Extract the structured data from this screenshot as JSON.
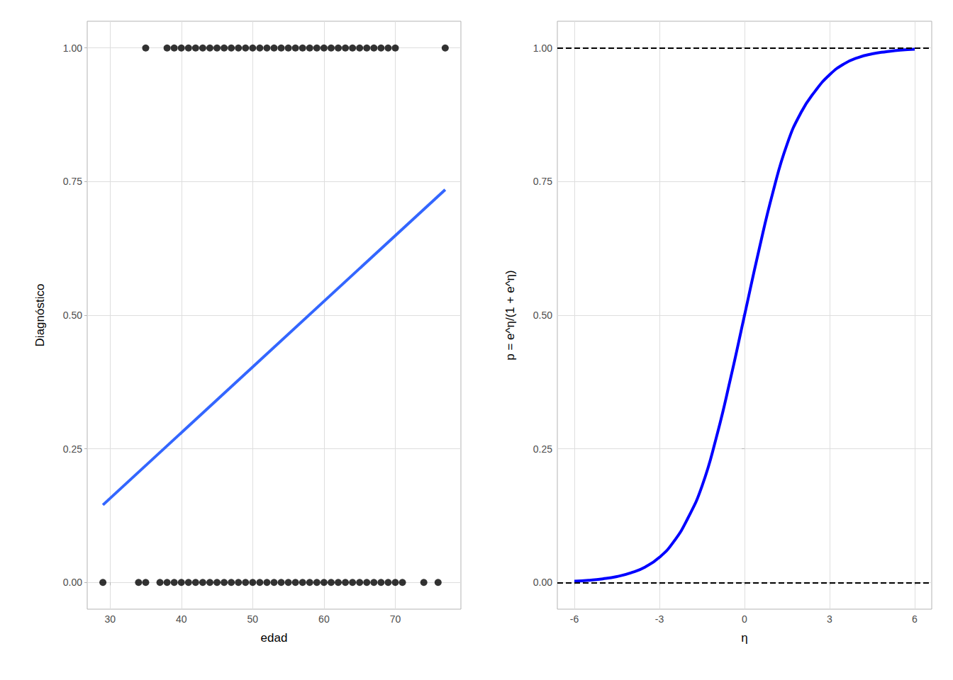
{
  "chart_data": [
    {
      "type": "scatter",
      "xlabel": "edad",
      "ylabel": "Diagnóstico",
      "xlim": [
        26.8,
        79.2
      ],
      "ylim": [
        -0.05,
        1.05
      ],
      "xticks": [
        30,
        40,
        50,
        60,
        70
      ],
      "yticks": [
        {
          "value": 0,
          "label": "0.00"
        },
        {
          "value": 0.25,
          "label": "0.25"
        },
        {
          "value": 0.5,
          "label": "0.50"
        },
        {
          "value": 0.75,
          "label": "0.75"
        },
        {
          "value": 1,
          "label": "1.00"
        }
      ],
      "grid": true,
      "series": [
        {
          "type": "scatter",
          "color": "#000000",
          "marker": "circle",
          "x": [
            35,
            38,
            39,
            40,
            41,
            42,
            43,
            44,
            45,
            46,
            47,
            48,
            49,
            50,
            51,
            52,
            53,
            54,
            55,
            56,
            57,
            58,
            59,
            60,
            61,
            62,
            63,
            64,
            65,
            66,
            67,
            68,
            69,
            70,
            77,
            29,
            34,
            35,
            37,
            38,
            39,
            40,
            41,
            42,
            43,
            44,
            45,
            46,
            47,
            48,
            49,
            50,
            51,
            52,
            53,
            54,
            55,
            56,
            57,
            58,
            59,
            60,
            61,
            62,
            63,
            64,
            65,
            66,
            67,
            68,
            69,
            70,
            71,
            74,
            76
          ],
          "values": [
            1,
            1,
            1,
            1,
            1,
            1,
            1,
            1,
            1,
            1,
            1,
            1,
            1,
            1,
            1,
            1,
            1,
            1,
            1,
            1,
            1,
            1,
            1,
            1,
            1,
            1,
            1,
            1,
            1,
            1,
            1,
            1,
            1,
            1,
            1,
            0,
            0,
            0,
            0,
            0,
            0,
            0,
            0,
            0,
            0,
            0,
            0,
            0,
            0,
            0,
            0,
            0,
            0,
            0,
            0,
            0,
            0,
            0,
            0,
            0,
            0,
            0,
            0,
            0,
            0,
            0,
            0,
            0,
            0,
            0,
            0,
            0,
            0,
            0,
            0
          ]
        },
        {
          "type": "line",
          "color": "#3366FF",
          "line_style": "solid",
          "x": [
            29,
            77
          ],
          "values": [
            0.145,
            0.735
          ]
        }
      ]
    },
    {
      "type": "line",
      "xlabel": "η",
      "ylabel": "p = e^η/(1 + e^η)",
      "xlim": [
        -6.6,
        6.6
      ],
      "ylim": [
        -0.05,
        1.05
      ],
      "xticks": [
        -6,
        -3,
        0,
        3,
        6
      ],
      "yticks": [
        {
          "value": 0,
          "label": "0.00"
        },
        {
          "value": 0.25,
          "label": "0.25"
        },
        {
          "value": 0.5,
          "label": "0.50"
        },
        {
          "value": 0.75,
          "label": "0.75"
        },
        {
          "value": 1,
          "label": "1.00"
        }
      ],
      "grid": true,
      "series": [
        {
          "type": "hline",
          "color": "#000000",
          "line_style": "dashed",
          "values": [
            0,
            1
          ]
        },
        {
          "type": "line",
          "color": "#0000FF",
          "line_style": "solid",
          "x": [
            -6,
            -5.5,
            -5,
            -4.5,
            -4,
            -3.5,
            -3,
            -2.5,
            -2,
            -1.5,
            -1,
            -0.5,
            0,
            0.5,
            1,
            1.5,
            2,
            2.5,
            3,
            3.5,
            4,
            4.5,
            5,
            5.5,
            6
          ],
          "values": [
            0.0025,
            0.004,
            0.0067,
            0.011,
            0.018,
            0.029,
            0.047,
            0.076,
            0.12,
            0.18,
            0.27,
            0.38,
            0.5,
            0.62,
            0.73,
            0.82,
            0.88,
            0.92,
            0.95,
            0.97,
            0.982,
            0.989,
            0.993,
            0.996,
            0.9975
          ]
        }
      ]
    }
  ]
}
